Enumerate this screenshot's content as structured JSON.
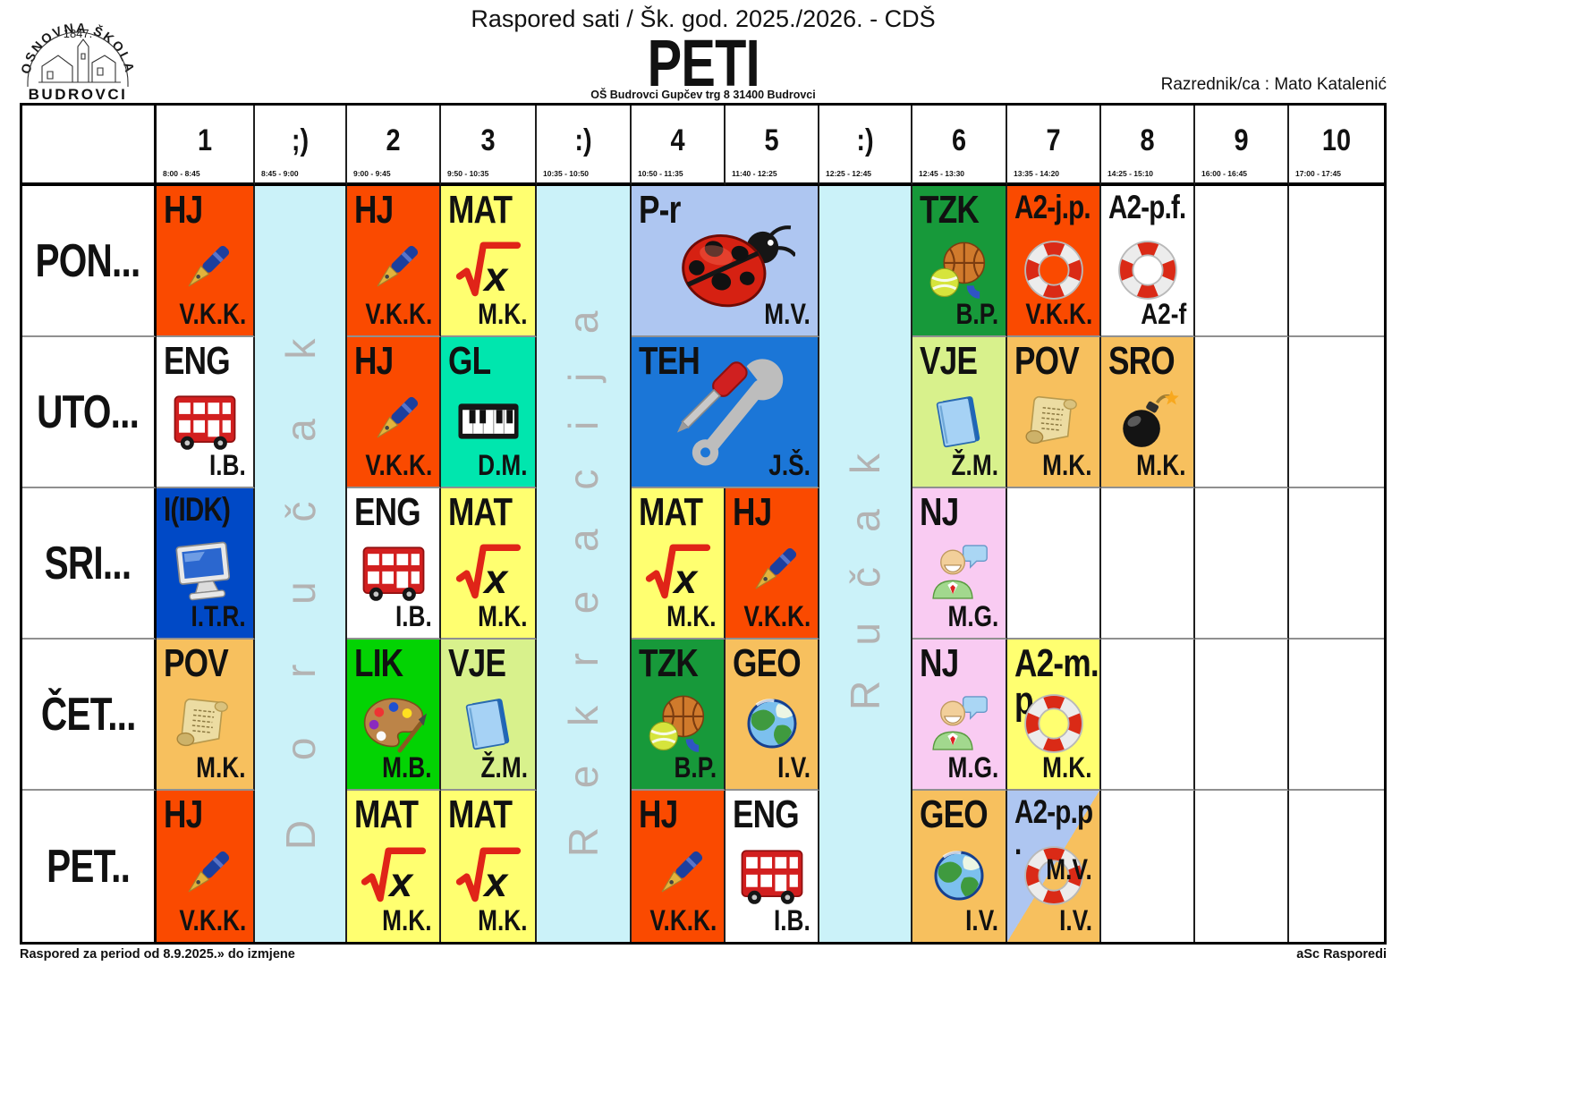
{
  "header": {
    "logo": {
      "arc_text": "OSNOVNA ŠKOLA",
      "year": "1847.",
      "bottom_text": "BUDROVCI"
    },
    "title": "Raspored sati / Šk. god. 2025./2026. - CDŠ",
    "class_name": "PETI",
    "school_address": "OŠ Budrovci  Gupčev trg 8  31400 Budrovci",
    "homeroom": "Razrednik/ca : Mato Katalenić"
  },
  "footer": {
    "left": "Raspored za period od 8.9.2025.» do izmjene",
    "right": "aSc Rasporedi"
  },
  "columns": [
    {
      "label": "1",
      "time": "8:00 - 8:45"
    },
    {
      "label": ";)",
      "time": "8:45 - 9:00",
      "break_label": "Doručak"
    },
    {
      "label": "2",
      "time": "9:00 - 9:45"
    },
    {
      "label": "3",
      "time": "9:50 - 10:35"
    },
    {
      "label": ":)",
      "time": "10:35 - 10:50",
      "break_label": "Rekreacija"
    },
    {
      "label": "4",
      "time": "10:50 - 11:35"
    },
    {
      "label": "5",
      "time": "11:40 - 12:25"
    },
    {
      "label": ":)",
      "time": "12:25 - 12:45",
      "break_label": "Ručak"
    },
    {
      "label": "6",
      "time": "12:45 - 13:30"
    },
    {
      "label": "7",
      "time": "13:35 - 14:20"
    },
    {
      "label": "8",
      "time": "14:25 - 15:10"
    },
    {
      "label": "9",
      "time": "16:00 - 16:45"
    },
    {
      "label": "10",
      "time": "17:00 - 17:45"
    }
  ],
  "days": [
    "PON...",
    "UTO...",
    "SRI...",
    "ČET...",
    "PET.."
  ],
  "colors": {
    "hj": "#fa4a00",
    "mat": "#ffff70",
    "white": "#ffffff",
    "gl": "#00e6ae",
    "idk": "#0049c6",
    "tzk": "#17993a",
    "vje": "#d8f18c",
    "tan": "#f7c05e",
    "lik": "#03d303",
    "nj": "#f9cbf2",
    "pr": "#aec6f1",
    "teh": "#1b76d7",
    "break_bg": "#cbf2f9",
    "break_text": "#b3b3b3"
  },
  "lessons": [
    {
      "day": 0,
      "col": 0,
      "subject": "HJ",
      "teacher": "V.K.K.",
      "icon": "pen",
      "bg": "hj"
    },
    {
      "day": 0,
      "col": 2,
      "subject": "HJ",
      "teacher": "V.K.K.",
      "icon": "pen",
      "bg": "hj"
    },
    {
      "day": 0,
      "col": 3,
      "subject": "MAT",
      "teacher": "M.K.",
      "icon": "sqrt",
      "bg": "mat"
    },
    {
      "day": 0,
      "col": 5,
      "span": 2,
      "subject": "P-r",
      "teacher": "M.V.",
      "icon": "ladybug",
      "bg": "pr"
    },
    {
      "day": 0,
      "col": 8,
      "subject": "TZK",
      "teacher": "B.P.",
      "icon": "balls",
      "bg": "tzk"
    },
    {
      "day": 0,
      "col": 9,
      "subject": "A2-j.p.",
      "teacher": "V.K.K.",
      "icon": "lifebuoy",
      "bg": "hj"
    },
    {
      "day": 0,
      "col": 10,
      "subject": "A2-p.f.",
      "teacher": "A2-f",
      "icon": "lifebuoy",
      "bg": "white"
    },
    {
      "day": 1,
      "col": 0,
      "subject": "ENG",
      "teacher": "I.B.",
      "icon": "bus",
      "bg": "white"
    },
    {
      "day": 1,
      "col": 2,
      "subject": "HJ",
      "teacher": "V.K.K.",
      "icon": "pen",
      "bg": "hj"
    },
    {
      "day": 1,
      "col": 3,
      "subject": "GL",
      "teacher": "D.M.",
      "icon": "piano",
      "bg": "gl"
    },
    {
      "day": 1,
      "col": 5,
      "span": 2,
      "subject": "TEH",
      "teacher": "J.Š.",
      "icon": "tools",
      "bg": "teh"
    },
    {
      "day": 1,
      "col": 8,
      "subject": "VJE",
      "teacher": "Ž.M.",
      "icon": "book",
      "bg": "vje"
    },
    {
      "day": 1,
      "col": 9,
      "subject": "POV",
      "teacher": "M.K.",
      "icon": "scroll",
      "bg": "tan"
    },
    {
      "day": 1,
      "col": 10,
      "subject": "SRO",
      "teacher": "M.K.",
      "icon": "bomb",
      "bg": "tan"
    },
    {
      "day": 2,
      "col": 0,
      "subject": "I(IDK)",
      "teacher": "I.T.R.",
      "icon": "computer",
      "bg": "idk"
    },
    {
      "day": 2,
      "col": 2,
      "subject": "ENG",
      "teacher": "I.B.",
      "icon": "bus",
      "bg": "white"
    },
    {
      "day": 2,
      "col": 3,
      "subject": "MAT",
      "teacher": "M.K.",
      "icon": "sqrt",
      "bg": "mat"
    },
    {
      "day": 2,
      "col": 5,
      "subject": "MAT",
      "teacher": "M.K.",
      "icon": "sqrt",
      "bg": "mat"
    },
    {
      "day": 2,
      "col": 6,
      "subject": "HJ",
      "teacher": "V.K.K.",
      "icon": "pen",
      "bg": "hj"
    },
    {
      "day": 2,
      "col": 8,
      "subject": "NJ",
      "teacher": "M.G.",
      "icon": "person",
      "bg": "nj"
    },
    {
      "day": 3,
      "col": 0,
      "subject": "POV",
      "teacher": "M.K.",
      "icon": "scroll",
      "bg": "tan"
    },
    {
      "day": 3,
      "col": 2,
      "subject": "LIK",
      "teacher": "M.B.",
      "icon": "palette",
      "bg": "lik"
    },
    {
      "day": 3,
      "col": 3,
      "subject": "VJE",
      "teacher": "Ž.M.",
      "icon": "book",
      "bg": "vje"
    },
    {
      "day": 3,
      "col": 5,
      "subject": "TZK",
      "teacher": "B.P.",
      "icon": "balls",
      "bg": "tzk"
    },
    {
      "day": 3,
      "col": 6,
      "subject": "GEO",
      "teacher": "I.V.",
      "icon": "globe",
      "bg": "tan"
    },
    {
      "day": 3,
      "col": 8,
      "subject": "NJ",
      "teacher": "M.G.",
      "icon": "person",
      "bg": "nj"
    },
    {
      "day": 3,
      "col": 9,
      "subject": "A2-m.p.",
      "subject_lines": [
        "A2-m.",
        "p."
      ],
      "teacher": "M.K.",
      "icon": "lifebuoy",
      "bg": "mat"
    },
    {
      "day": 4,
      "col": 0,
      "subject": "HJ",
      "teacher": "V.K.K.",
      "icon": "pen",
      "bg": "hj"
    },
    {
      "day": 4,
      "col": 2,
      "subject": "MAT",
      "teacher": "M.K.",
      "icon": "sqrt",
      "bg": "mat"
    },
    {
      "day": 4,
      "col": 3,
      "subject": "MAT",
      "teacher": "M.K.",
      "icon": "sqrt",
      "bg": "mat"
    },
    {
      "day": 4,
      "col": 5,
      "subject": "HJ",
      "teacher": "V.K.K.",
      "icon": "pen",
      "bg": "hj"
    },
    {
      "day": 4,
      "col": 6,
      "subject": "ENG",
      "teacher": "I.B.",
      "icon": "bus",
      "bg": "white"
    },
    {
      "day": 4,
      "col": 8,
      "subject": "GEO",
      "teacher": "I.V.",
      "icon": "globe",
      "bg": "tan"
    },
    {
      "day": 4,
      "col": 9,
      "subject": "A2-p.p.",
      "subject_lines": [
        "A2-p.p",
        "."
      ],
      "teacher": "M.V.",
      "teacher2": "I.V.",
      "icon": "lifebuoy",
      "bg": "pr",
      "bg2": "tan"
    }
  ]
}
